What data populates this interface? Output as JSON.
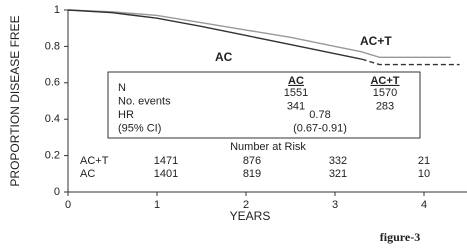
{
  "chart_data": {
    "type": "line",
    "ylabel": "PROPORTION DISEASE FREE",
    "xlabel": "YEARS",
    "caption": "figure-3",
    "xlim": [
      0,
      4.6
    ],
    "ylim": [
      0,
      1
    ],
    "xticks": [
      0,
      1,
      2,
      3,
      4
    ],
    "yticks": [
      0,
      0.2,
      0.4,
      0.6,
      0.8,
      1
    ],
    "series": [
      {
        "name": "AC+T",
        "color": "#999999",
        "x": [
          0,
          0.5,
          1,
          1.5,
          2,
          2.5,
          3,
          3.3,
          3.5,
          4.3
        ],
        "values": [
          1,
          0.99,
          0.97,
          0.93,
          0.89,
          0.85,
          0.8,
          0.77,
          0.74,
          0.74
        ]
      },
      {
        "name": "AC",
        "color": "#333333",
        "dash_after_x": 3.3,
        "x": [
          0,
          0.5,
          1,
          1.5,
          2,
          2.5,
          3,
          3.3,
          3.5,
          4.4
        ],
        "values": [
          1,
          0.985,
          0.955,
          0.91,
          0.86,
          0.81,
          0.76,
          0.73,
          0.7,
          0.7
        ]
      }
    ],
    "summary_table": {
      "columns": [
        "AC",
        "AC+T"
      ],
      "rows": [
        {
          "label": "N",
          "cells": [
            "1551",
            null,
            "1570"
          ]
        },
        {
          "label": "No. events",
          "cells": [
            "341",
            null,
            "283"
          ]
        },
        {
          "label": "HR",
          "cells": [
            null,
            "0.78",
            null
          ]
        },
        {
          "label": "(95% CI)",
          "cells": [
            null,
            "(0.67-0.91)",
            null
          ]
        }
      ]
    },
    "at_risk": {
      "title": "Number at Risk",
      "rows": [
        {
          "label": "AC+T",
          "values": [
            1471,
            876,
            332,
            21
          ]
        },
        {
          "label": "AC",
          "values": [
            1401,
            819,
            321,
            10
          ]
        }
      ]
    }
  }
}
